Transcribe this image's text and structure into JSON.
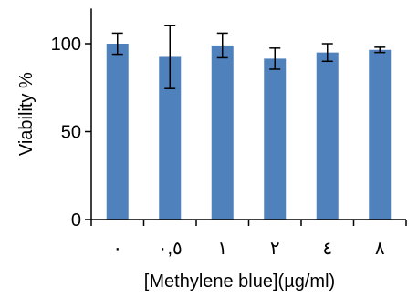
{
  "chart_data": {
    "type": "bar",
    "categories": [
      "٠",
      "٠,٥",
      "١",
      "٢",
      "٤",
      "٨"
    ],
    "values": [
      100,
      92.5,
      99,
      91.5,
      95,
      96.5
    ],
    "errors": [
      6,
      18,
      7,
      6,
      5,
      1.5
    ],
    "xlabel": "[Methylene blue](µg/ml)",
    "ylabel": "Viability %",
    "ylim": [
      0,
      120
    ],
    "yticks": [
      0,
      50,
      100
    ],
    "bar_color": "#4f81bd",
    "grid": false,
    "legend": "none"
  }
}
